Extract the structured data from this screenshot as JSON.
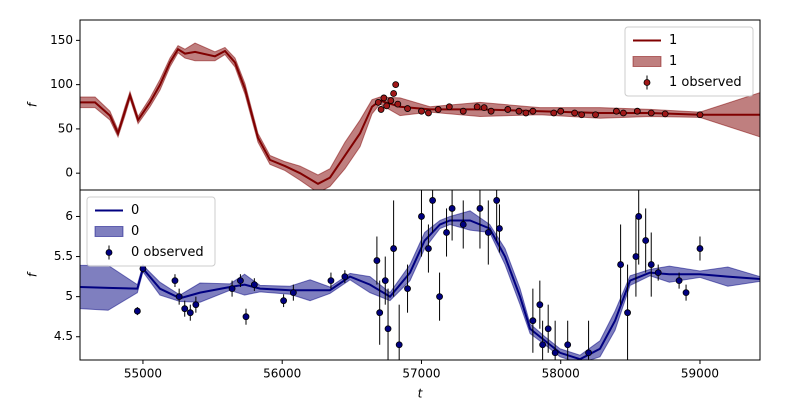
{
  "chart_data": [
    {
      "type": "line",
      "ylabel": "f",
      "xlim": [
        54548,
        59431
      ],
      "ylim": [
        -19,
        173
      ],
      "yticks": [
        0,
        50,
        100,
        150
      ],
      "legend": "upper right",
      "series": [
        {
          "type": "line",
          "name": "1",
          "color": "#800000",
          "x": [
            54548,
            54656,
            54763,
            54821,
            54871,
            54907,
            54965,
            55051,
            55123,
            55194,
            55252,
            55302,
            55374,
            55517,
            55589,
            55661,
            55733,
            55826,
            55912,
            56020,
            56128,
            56257,
            56343,
            56451,
            56559,
            56645,
            56702,
            56846,
            57061,
            57420,
            57851,
            58282,
            58641,
            59000,
            59431
          ],
          "values": [
            80,
            80,
            65,
            45,
            70,
            88,
            60,
            80,
            100,
            125,
            140,
            135,
            137,
            132,
            138,
            125,
            95,
            40,
            15,
            8,
            0,
            -12,
            -5,
            20,
            45,
            75,
            82,
            75,
            72,
            72,
            70,
            68,
            68,
            66,
            66
          ]
        },
        {
          "type": "band",
          "name": "1",
          "color": "#800000",
          "opacity": 0.5,
          "x": [
            54548,
            54656,
            54763,
            54821,
            54871,
            54907,
            54965,
            55051,
            55123,
            55194,
            55252,
            55302,
            55374,
            55517,
            55589,
            55661,
            55733,
            55826,
            55912,
            56020,
            56128,
            56257,
            56343,
            56451,
            56559,
            56645,
            56702,
            56846,
            57061,
            57420,
            57851,
            58282,
            58641,
            59000,
            59431
          ],
          "lower": [
            74,
            74,
            60,
            41,
            65,
            84,
            56,
            75,
            94,
            120,
            136,
            130,
            127,
            127,
            134,
            120,
            89,
            35,
            10,
            3,
            -8,
            -22,
            -15,
            5,
            30,
            67,
            78,
            65,
            69,
            64,
            66,
            62,
            64,
            63,
            41
          ],
          "upper": [
            86,
            86,
            70,
            49,
            75,
            92,
            64,
            85,
            106,
            130,
            144,
            140,
            147,
            137,
            142,
            130,
            101,
            45,
            20,
            13,
            8,
            -2,
            5,
            35,
            60,
            83,
            86,
            85,
            75,
            80,
            74,
            74,
            72,
            69,
            91
          ]
        },
        {
          "type": "errorbar",
          "name": "1 observed",
          "color": "#a01818",
          "x": [
            56690,
            56710,
            56730,
            56750,
            56780,
            56800,
            56815,
            56830,
            56900,
            57000,
            57050,
            57120,
            57200,
            57300,
            57400,
            57450,
            57500,
            57620,
            57700,
            57750,
            57800,
            57950,
            58000,
            58100,
            58150,
            58250,
            58400,
            58450,
            58550,
            58650,
            58750,
            59000
          ],
          "values": [
            80,
            72,
            85,
            76,
            82,
            90,
            100,
            78,
            73,
            70,
            68,
            72,
            75,
            70,
            75,
            74,
            70,
            72,
            70,
            68,
            70,
            68,
            70,
            68,
            66,
            66,
            70,
            68,
            70,
            68,
            67,
            66
          ],
          "errors": [
            3,
            3,
            3,
            3,
            3,
            3,
            3,
            3,
            3,
            3,
            3,
            3,
            3,
            3,
            3,
            3,
            3,
            3,
            3,
            3,
            3,
            3,
            3,
            3,
            3,
            3,
            3,
            3,
            3,
            3,
            3,
            3
          ]
        }
      ]
    },
    {
      "type": "line",
      "ylabel": "f",
      "xlabel": "t",
      "xlim": [
        54548,
        59431
      ],
      "ylim": [
        4.21,
        6.33
      ],
      "xticks": [
        55000,
        56000,
        57000,
        58000,
        59000
      ],
      "yticks": [
        4.5,
        5.0,
        5.5,
        6.0
      ],
      "legend": "upper left",
      "series": [
        {
          "type": "line",
          "name": "0",
          "color": "#000080",
          "x": [
            54548,
            54750,
            54960,
            55000,
            55122,
            55266,
            55410,
            55625,
            55730,
            55841,
            56056,
            56200,
            56343,
            56487,
            56630,
            56774,
            56918,
            57023,
            57133,
            57205,
            57349,
            57490,
            57600,
            57708,
            57780,
            57887,
            57995,
            58139,
            58282,
            58390,
            58498,
            58641,
            58780,
            59000,
            59200,
            59431
          ],
          "values": [
            5.12,
            5.11,
            5.1,
            5.35,
            5.1,
            4.98,
            5.05,
            5.12,
            5.15,
            5.1,
            5.08,
            5.08,
            5.08,
            5.25,
            5.15,
            5.0,
            5.3,
            5.7,
            5.9,
            5.95,
            5.95,
            5.85,
            5.5,
            5.0,
            4.6,
            4.45,
            4.3,
            4.22,
            4.35,
            4.7,
            5.2,
            5.3,
            5.28,
            5.28,
            5.25,
            5.22
          ]
        },
        {
          "type": "band",
          "name": "0",
          "color": "#000080",
          "opacity": 0.5,
          "x": [
            54548,
            54750,
            54960,
            55000,
            55122,
            55266,
            55410,
            55625,
            55730,
            55841,
            56056,
            56200,
            56343,
            56487,
            56630,
            56774,
            56918,
            57023,
            57133,
            57205,
            57349,
            57490,
            57600,
            57708,
            57780,
            57887,
            57995,
            58139,
            58282,
            58390,
            58498,
            58641,
            58780,
            59000,
            59200,
            59431
          ],
          "lower": [
            4.85,
            4.83,
            5.05,
            5.31,
            5.02,
            4.94,
            4.93,
            5.08,
            5.02,
            5.06,
            5.03,
            4.95,
            5.04,
            5.21,
            5.05,
            4.95,
            5.2,
            5.6,
            5.85,
            5.9,
            5.83,
            5.8,
            5.4,
            4.9,
            4.54,
            4.4,
            4.25,
            4.17,
            4.25,
            4.58,
            5.14,
            5.26,
            5.18,
            5.24,
            5.13,
            5.19
          ],
          "upper": [
            5.39,
            5.39,
            5.15,
            5.39,
            5.18,
            5.02,
            5.17,
            5.16,
            5.28,
            5.14,
            5.13,
            5.21,
            5.12,
            5.29,
            5.25,
            5.05,
            5.4,
            5.8,
            5.95,
            6.0,
            6.07,
            5.9,
            5.6,
            5.1,
            4.66,
            4.5,
            4.35,
            4.27,
            4.45,
            4.82,
            5.26,
            5.34,
            5.38,
            5.32,
            5.37,
            5.25
          ]
        },
        {
          "type": "errorbar",
          "name": "0 observed",
          "color": "#000080",
          "x": [
            54960,
            55000,
            55230,
            55260,
            55300,
            55340,
            55380,
            55640,
            55700,
            55740,
            55800,
            56010,
            56080,
            56350,
            56450,
            56680,
            56700,
            56740,
            56760,
            56800,
            56840,
            56900,
            57000,
            57050,
            57080,
            57130,
            57180,
            57220,
            57300,
            57420,
            57480,
            57540,
            57560,
            57800,
            57850,
            57870,
            57910,
            57960,
            58050,
            58200,
            58430,
            58480,
            58540,
            58560,
            58610,
            58650,
            58700,
            58850,
            58900,
            59000
          ],
          "values": [
            4.82,
            5.35,
            5.2,
            5.0,
            4.85,
            4.8,
            4.9,
            5.1,
            5.2,
            4.75,
            5.15,
            4.95,
            5.05,
            5.2,
            5.25,
            5.45,
            4.8,
            5.2,
            4.6,
            5.6,
            4.4,
            5.1,
            6.0,
            5.6,
            6.2,
            5.0,
            5.8,
            6.1,
            5.9,
            6.1,
            5.8,
            6.2,
            5.85,
            4.7,
            4.9,
            4.4,
            4.6,
            4.3,
            4.4,
            4.3,
            5.4,
            4.8,
            5.5,
            6.0,
            5.7,
            5.4,
            5.3,
            5.2,
            5.05,
            5.6
          ],
          "errors": [
            0.05,
            0.05,
            0.08,
            0.1,
            0.1,
            0.1,
            0.1,
            0.1,
            0.08,
            0.1,
            0.08,
            0.08,
            0.1,
            0.1,
            0.08,
            0.3,
            0.4,
            0.3,
            0.5,
            0.6,
            0.5,
            0.3,
            0.5,
            0.3,
            0.4,
            0.3,
            0.3,
            0.4,
            0.3,
            0.5,
            0.4,
            0.5,
            0.3,
            0.4,
            0.3,
            0.3,
            0.3,
            0.4,
            0.3,
            0.4,
            0.5,
            0.6,
            0.5,
            0.6,
            0.4,
            0.4,
            0.1,
            0.1,
            0.1,
            0.15
          ]
        }
      ]
    }
  ]
}
